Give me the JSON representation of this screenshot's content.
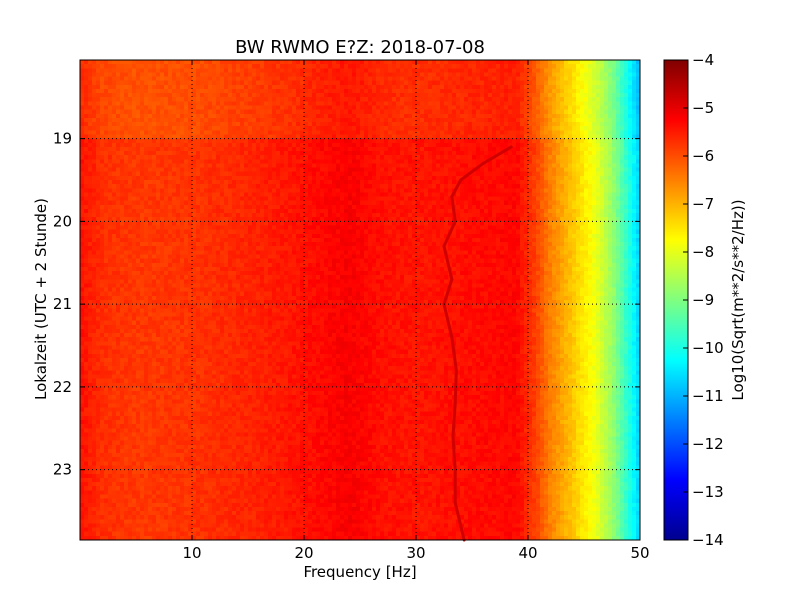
{
  "chart_data": {
    "type": "heatmap",
    "title": "BW RWMO E?Z: 2018-07-08",
    "xlabel": "Frequency [Hz]",
    "ylabel": "Lokalzeit (UTC + 2 Stunde)",
    "colorbar_label": "Log10(Sqrt(m**2/s**2/Hz))",
    "colormap": "jet",
    "grid": true,
    "x_range": [
      0,
      50
    ],
    "y_range_hours": [
      18.05,
      23.85
    ],
    "y_direction": "increasing-downward",
    "color_range": [
      -14,
      -4
    ],
    "x_ticks": [
      10,
      20,
      30,
      40,
      50
    ],
    "x_tick_labels": [
      "10",
      "20",
      "30",
      "40",
      "50"
    ],
    "y_ticks": [
      19,
      20,
      21,
      22,
      23
    ],
    "y_tick_labels": [
      "19",
      "20",
      "21",
      "22",
      "23"
    ],
    "colorbar_ticks": [
      -4,
      -5,
      -6,
      -7,
      -8,
      -9,
      -10,
      -11,
      -12,
      -13,
      -14
    ],
    "colorbar_tick_labels": [
      "−4",
      "−5",
      "−6",
      "−7",
      "−8",
      "−9",
      "−10",
      "−11",
      "−12",
      "−13",
      "−14"
    ],
    "spectrum": {
      "frequency_hz": [
        0,
        2,
        5,
        10,
        15,
        19,
        21,
        24,
        27,
        30,
        33,
        36,
        39,
        40.5,
        42,
        44,
        46,
        47.5,
        49,
        50
      ],
      "log_amplitude": [
        -5.5,
        -5.8,
        -5.9,
        -5.85,
        -5.7,
        -5.55,
        -5.45,
        -5.3,
        -5.5,
        -5.55,
        -5.5,
        -5.45,
        -5.4,
        -5.9,
        -6.6,
        -7.3,
        -8.0,
        -8.8,
        -10.0,
        -10.8
      ]
    },
    "time_bands": [
      {
        "start": 18.05,
        "end": 19.0,
        "offset": -0.15
      },
      {
        "start": 19.0,
        "end": 23.85,
        "offset": 0.1
      }
    ],
    "tonal_line": {
      "description": "narrow high-amplitude drifting line",
      "log_amplitude": -4.8,
      "points": [
        {
          "time": 19.1,
          "frequency": 38.5
        },
        {
          "time": 19.3,
          "frequency": 36.0
        },
        {
          "time": 19.5,
          "frequency": 34.0
        },
        {
          "time": 19.7,
          "frequency": 33.2
        },
        {
          "time": 20.0,
          "frequency": 33.5
        },
        {
          "time": 20.3,
          "frequency": 32.5
        },
        {
          "time": 20.7,
          "frequency": 33.2
        },
        {
          "time": 21.0,
          "frequency": 32.5
        },
        {
          "time": 21.4,
          "frequency": 33.2
        },
        {
          "time": 21.8,
          "frequency": 33.6
        },
        {
          "time": 22.2,
          "frequency": 33.5
        },
        {
          "time": 22.6,
          "frequency": 33.3
        },
        {
          "time": 23.0,
          "frequency": 33.5
        },
        {
          "time": 23.4,
          "frequency": 33.5
        },
        {
          "time": 23.85,
          "frequency": 34.3
        }
      ]
    }
  }
}
